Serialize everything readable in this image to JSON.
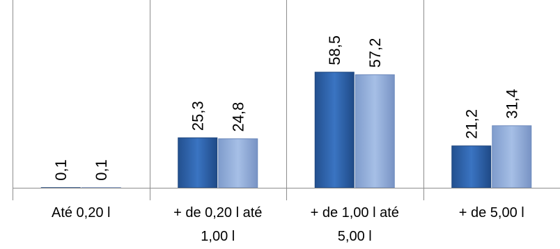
{
  "chart_data": {
    "type": "bar",
    "categories": [
      [
        "Até 0,20 l"
      ],
      [
        "+ de 0,20 l até",
        "1,00 l"
      ],
      [
        "+ de 1,00 l até",
        "5,00 l"
      ],
      [
        "+ de 5,00 l"
      ]
    ],
    "series": [
      {
        "values": [
          0.1,
          25.3,
          58.5,
          21.2
        ],
        "labels": [
          "0,1",
          "25,3",
          "58,5",
          "21,2"
        ],
        "color": "#2f67b3"
      },
      {
        "values": [
          0.1,
          24.8,
          57.2,
          31.4
        ],
        "labels": [
          "0,1",
          "24,8",
          "57,2",
          "31,4"
        ],
        "color": "#8faad8"
      }
    ],
    "ylim": [
      0,
      95
    ],
    "grid": false,
    "legend": "none"
  }
}
